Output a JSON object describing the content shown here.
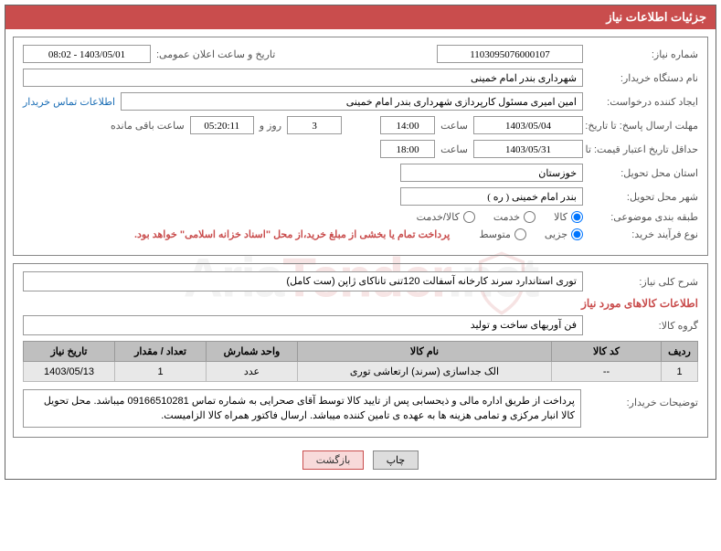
{
  "header": {
    "title": "جزئیات اطلاعات نیاز"
  },
  "watermark": {
    "text1": "Aria",
    "text2": "Tender",
    "text3": ".net"
  },
  "panel1": {
    "request_no_label": "شماره نیاز:",
    "request_no": "1103095076000107",
    "announce_label": "تاریخ و ساعت اعلان عمومی:",
    "announce_value": "1403/05/01 - 08:02",
    "buyer_org_label": "نام دستگاه خریدار:",
    "buyer_org": "شهرداری بندر امام خمینی",
    "creator_label": "ایجاد کننده درخواست:",
    "creator": "امین امیری مسئول کارپردازی شهرداری بندر امام خمینی",
    "contact_link": "اطلاعات تماس خریدار",
    "deadline_reply_label": "مهلت ارسال پاسخ: تا تاریخ:",
    "deadline_reply_date": "1403/05/04",
    "hour_label": "ساعت",
    "deadline_reply_time": "14:00",
    "days_val": "3",
    "days_and": "روز و",
    "countdown": "05:20:11",
    "remain_label": "ساعت باقی مانده",
    "validity_label": "حداقل تاریخ اعتبار قیمت: تا تاریخ:",
    "validity_date": "1403/05/31",
    "validity_time": "18:00",
    "province_label": "استان محل تحویل:",
    "province": "خوزستان",
    "city_label": "شهر محل تحویل:",
    "city": "بندر امام خمینی ( ره )",
    "class_label": "طبقه بندی موضوعی:",
    "radio_goods": "کالا",
    "radio_service": "خدمت",
    "radio_both": "کالا/خدمت",
    "process_label": "نوع فرآیند خرید:",
    "radio_partial": "جزیی",
    "radio_medium": "متوسط",
    "payment_note": "پرداخت تمام یا بخشی از مبلغ خرید،از محل \"اسناد خزانه اسلامی\" خواهد بود."
  },
  "panel2": {
    "overall_desc_label": "شرح کلی نیاز:",
    "overall_desc": "توری استاندارد سرند کارخانه آسفالت 120تنی تاناکای ژاپن (ست کامل)",
    "goods_info_title": "اطلاعات کالاهای مورد نیاز",
    "goods_group_label": "گروه کالا:",
    "goods_group": "فن آوریهای ساخت و تولید",
    "table": {
      "headers": [
        "ردیف",
        "کد کالا",
        "نام کالا",
        "واحد شمارش",
        "تعداد / مقدار",
        "تاریخ نیاز"
      ],
      "rows": [
        [
          "1",
          "--",
          "الک جداسازی (سرند) ارتعاشی توری",
          "عدد",
          "1",
          "1403/05/13"
        ]
      ]
    },
    "buyer_notes_label": "توضیحات خریدار:",
    "buyer_notes": "پرداخت از طریق اداره مالی و ذیحسابی پس از تایید کالا توسط آقای صحرایی به شماره تماس 09166510281 میباشد. محل تحویل کالا انبار مرکزی و تمامی هزینه ها به عهده ی تامین کننده میباشد. ارسال فاکتور همراه کالا الزامیست."
  },
  "buttons": {
    "print": "چاپ",
    "back": "بازگشت"
  },
  "col_widths": [
    "40px",
    "120px",
    "auto",
    "100px",
    "100px",
    "100px"
  ]
}
